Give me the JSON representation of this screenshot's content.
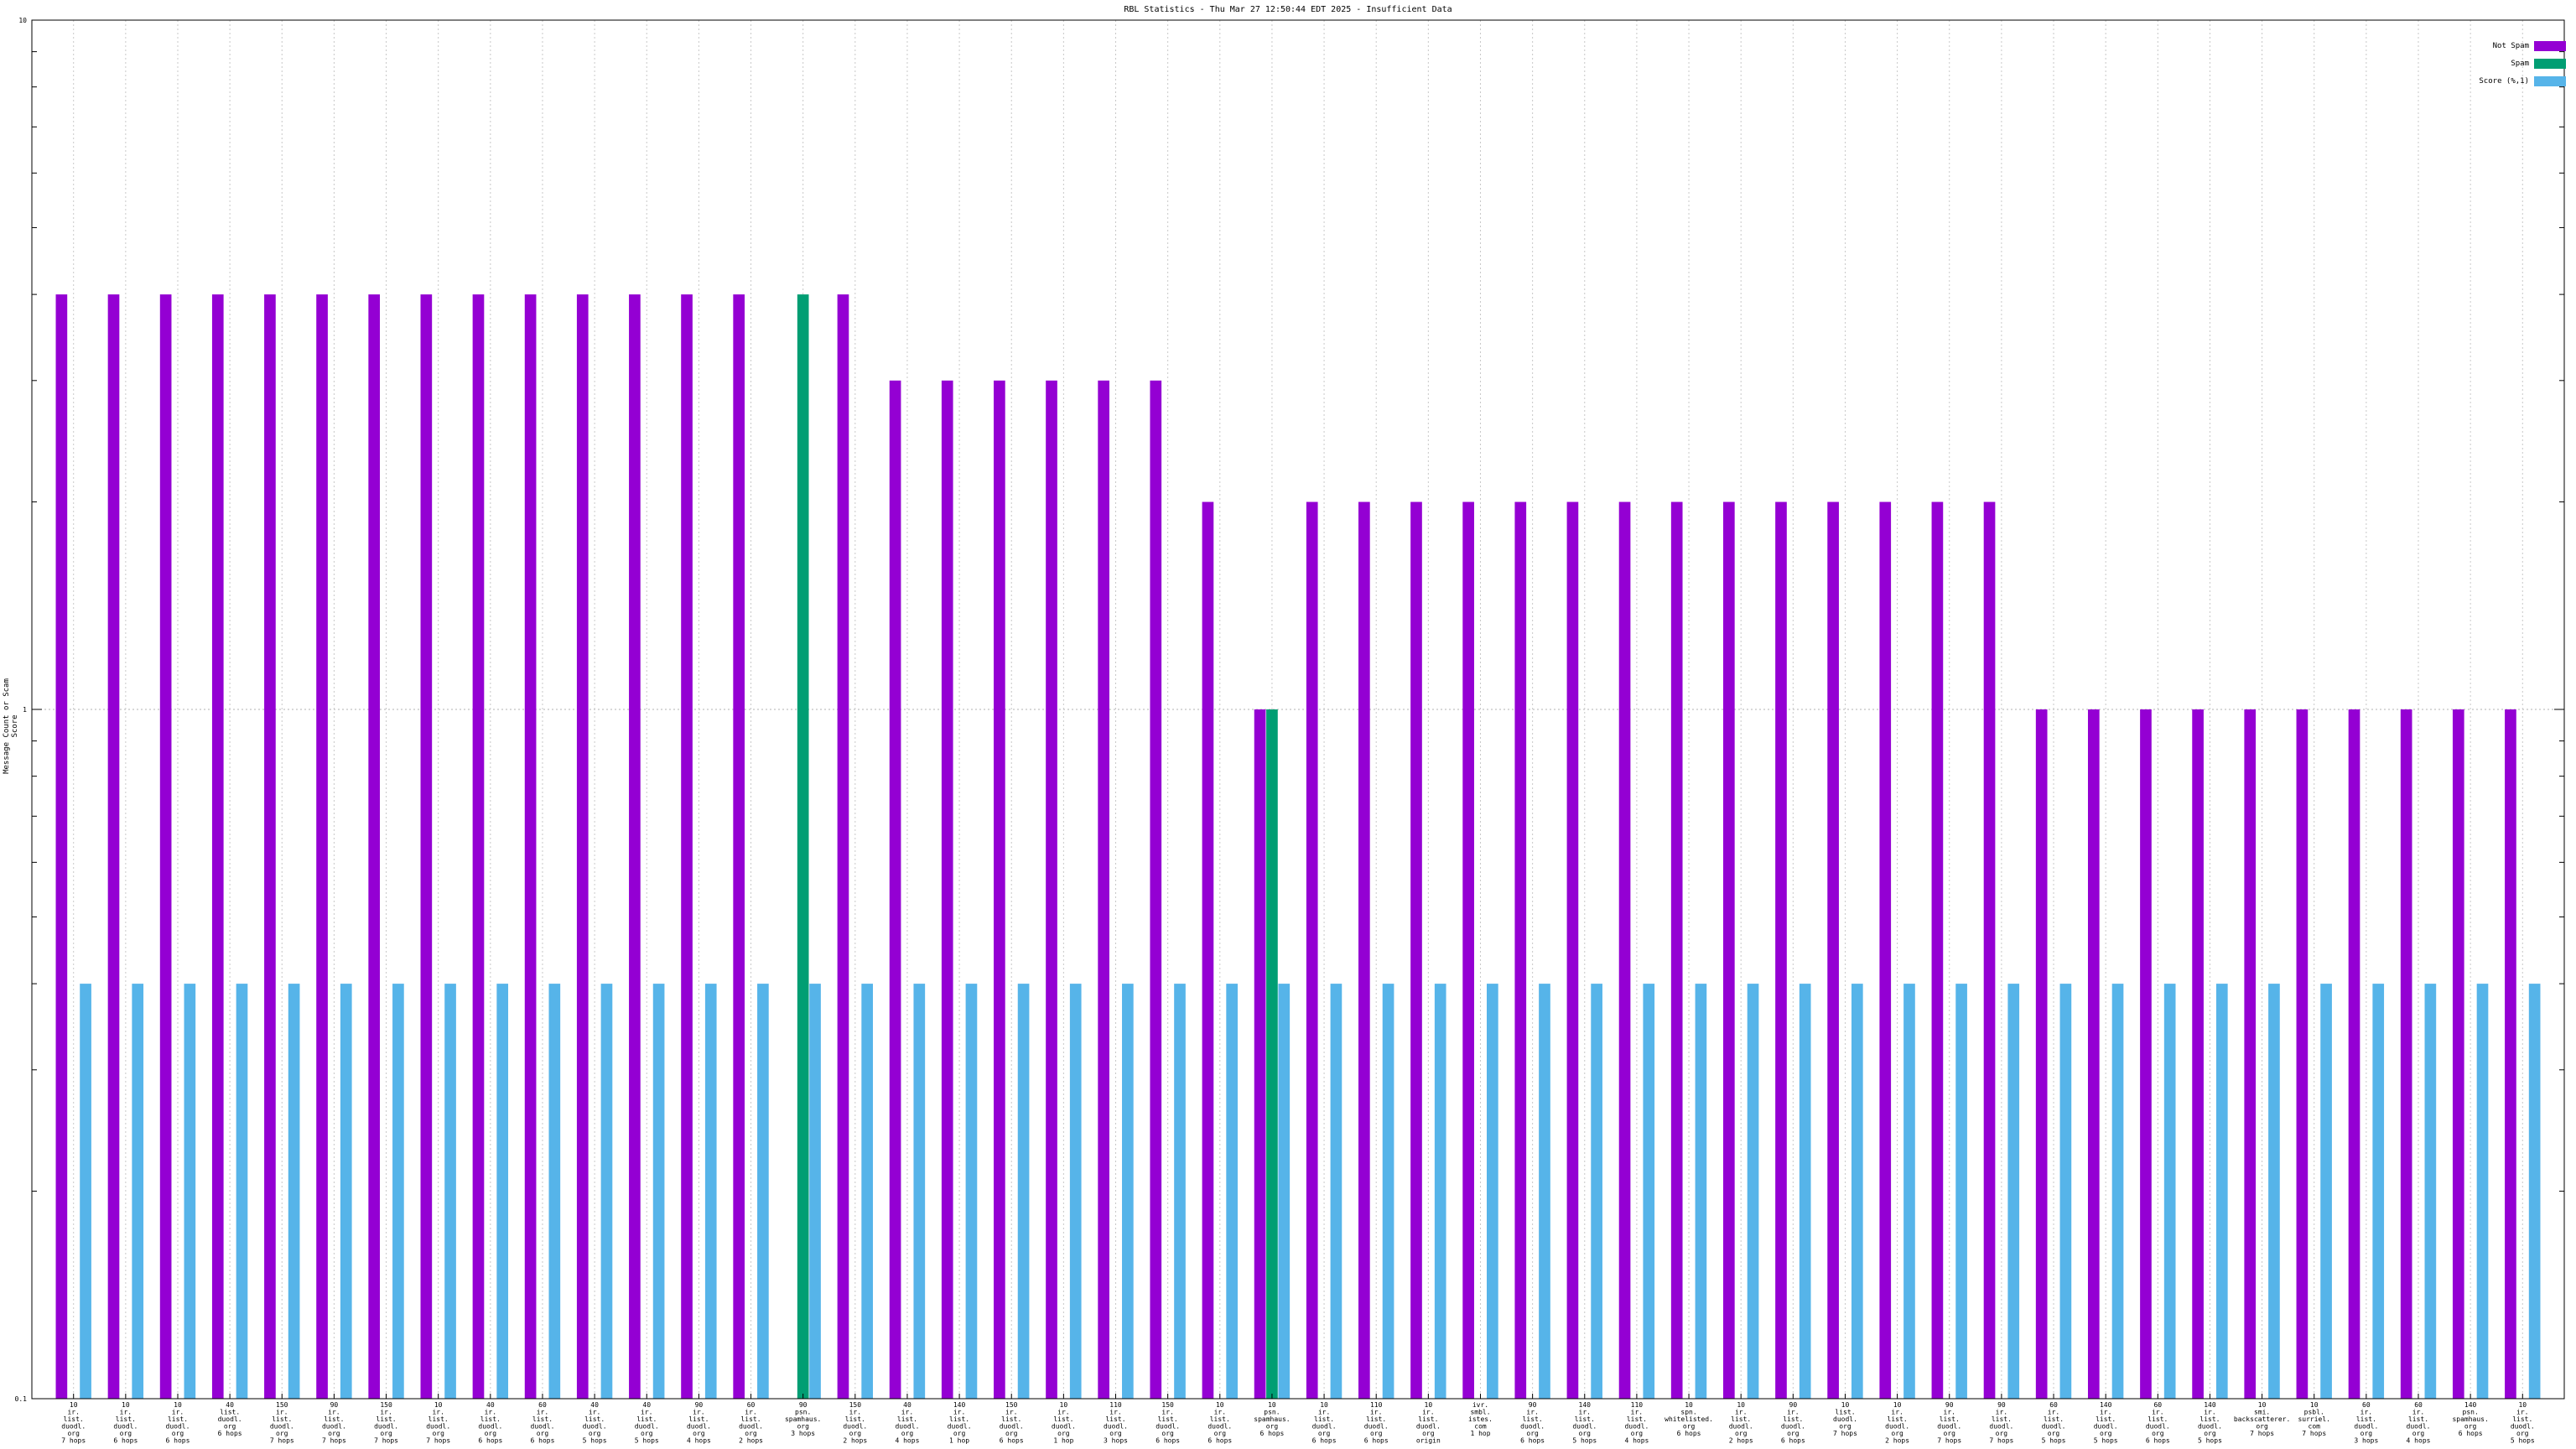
{
  "chart_data": {
    "type": "bar",
    "title": "RBL Statistics - Thu Mar 27 12:50:44 EDT 2025 - Insufficient Data",
    "ylabel": "Message Count or Scam Score",
    "xlabel": "",
    "yscale": "log",
    "ylim": [
      0.1,
      10
    ],
    "yticks": [
      "0.1",
      "1",
      "10"
    ],
    "grid": true,
    "legend_position": "top-right",
    "categories": [
      "10\nir.\nlist.\nduodl.\norg\n7 hops",
      "10\nir.\nlist.\nduodl.\norg\n6 hops",
      "10\nir.\nlist.\nduodl.\norg\n6 hops",
      "40\nlist.\nduodl.\norg\n6 hops",
      "150\nir.\nlist.\nduodl.\norg\n7 hops",
      "90\nir.\nlist.\nduodl.\norg\n7 hops",
      "150\nir.\nlist.\nduodl.\norg\n7 hops",
      "10\nir.\nlist.\nduodl.\norg\n7 hops",
      "40\nir.\nlist.\nduodl.\norg\n6 hops",
      "60\nir.\nlist.\nduodl.\norg\n6 hops",
      "40\nir.\nlist.\nduodl.\norg\n5 hops",
      "40\nir.\nlist.\nduodl.\norg\n5 hops",
      "90\nir.\nlist.\nduodl.\norg\n4 hops",
      "60\nir.\nlist.\nduodl.\norg\n2 hops",
      "90\npsn.\nspamhaus.\norg\n3 hops",
      "150\nir.\nlist.\nduodl.\norg\n2 hops",
      "40\nir.\nlist.\nduodl.\norg\n4 hops",
      "140\nir.\nlist.\nduodl.\norg\n1 hop",
      "150\nir.\nlist.\nduodl.\norg\n6 hops",
      "10\nir.\nlist.\nduodl.\norg\n1 hop",
      "110\nir.\nlist.\nduodl.\norg\n3 hops",
      "150\nir.\nlist.\nduodl.\norg\n6 hops",
      "10\nir.\nlist.\nduodl.\norg\n6 hops",
      "10\npsn.\nspamhaus.\norg\n6 hops",
      "10\nir.\nlist.\nduodl.\norg\n6 hops",
      "110\nir.\nlist.\nduodl.\norg\n6 hops",
      "10\nir.\nlist.\nduodl.\norg\norigin",
      "ivr.\nsmbl.\nistes.\ncom\n1 hop",
      "90\nir.\nlist.\nduodl.\norg\n6 hops",
      "140\nir.\nlist.\nduodl.\norg\n5 hops",
      "110\nir.\nlist.\nduodl.\norg\n4 hops",
      "10\nspn.\nwhitelisted.\norg\n6 hops",
      "10\nir.\nlist.\nduodl.\norg\n2 hops",
      "90\nir.\nlist.\nduodl.\norg\n6 hops",
      "10\nlist.\nduodl.\norg\n7 hops",
      "10\nir.\nlist.\nduodl.\norg\n2 hops",
      "90\nir.\nlist.\nduodl.\norg\n7 hops",
      "90\nir.\nlist.\nduodl.\norg\n7 hops",
      "60\nir.\nlist.\nduodl.\norg\n5 hops",
      "140\nir.\nlist.\nduodl.\norg\n5 hops",
      "60\nir.\nlist.\nduodl.\norg\n6 hops",
      "140\nir.\nlist.\nduodl.\norg\n5 hops",
      "10\nsmi.\nbackscatterer.\norg\n7 hops",
      "10\npsbl.\nsurriel.\ncom\n7 hops",
      "60\nir.\nlist.\nduodl.\norg\n3 hops",
      "60\nir.\nlist.\nduodl.\norg\n4 hops",
      "140\npsn.\nspamhaus.\norg\n6 hops",
      "10\nir.\nlist.\nduodl.\norg\n5 hops"
    ],
    "series": [
      {
        "name": "Not Spam",
        "color": "#9400d3",
        "values": [
          4,
          4,
          4,
          4,
          4,
          4,
          4,
          4,
          4,
          4,
          4,
          4,
          4,
          4,
          0,
          4,
          3,
          3,
          3,
          3,
          3,
          3,
          2,
          1,
          2,
          2,
          2,
          2,
          2,
          2,
          2,
          2,
          2,
          2,
          2,
          2,
          2,
          2,
          1,
          1,
          1,
          1,
          1,
          1,
          1,
          1,
          1,
          1
        ]
      },
      {
        "name": "Spam",
        "color": "#009e73",
        "values": [
          0,
          0,
          0,
          0,
          0,
          0,
          0,
          0,
          0,
          0,
          0,
          0,
          0,
          0,
          4,
          0,
          0,
          0,
          0,
          0,
          0,
          0,
          0,
          1,
          0,
          0,
          0,
          0,
          0,
          0,
          0,
          0,
          0,
          0,
          0,
          0,
          0,
          0,
          0,
          0,
          0,
          0,
          0,
          0,
          0,
          0,
          0,
          0
        ]
      },
      {
        "name": "Score (%,1)",
        "color": "#56b4e9",
        "values": [
          0.4,
          0.4,
          0.4,
          0.4,
          0.4,
          0.4,
          0.4,
          0.4,
          0.4,
          0.4,
          0.4,
          0.4,
          0.4,
          0.4,
          0.4,
          0.4,
          0.4,
          0.4,
          0.4,
          0.4,
          0.4,
          0.4,
          0.4,
          0.4,
          0.4,
          0.4,
          0.4,
          0.4,
          0.4,
          0.4,
          0.4,
          0.4,
          0.4,
          0.4,
          0.4,
          0.4,
          0.4,
          0.4,
          0.4,
          0.4,
          0.4,
          0.4,
          0.4,
          0.4,
          0.4,
          0.4,
          0.4,
          0.4
        ]
      }
    ]
  }
}
